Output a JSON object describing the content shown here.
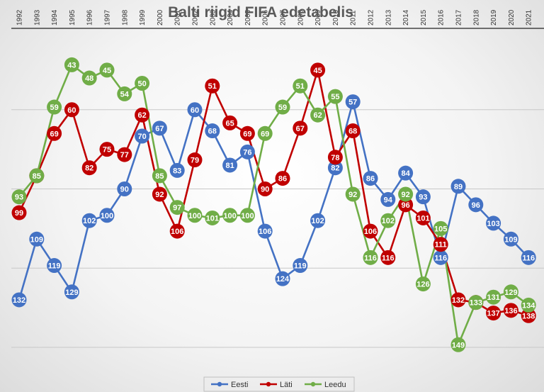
{
  "chart_data": {
    "type": "line",
    "title": "Balti riigid FIFA edetabelis",
    "x": [
      "1992",
      "1993",
      "1994",
      "1995",
      "1996",
      "1997",
      "1998",
      "1999",
      "2000",
      "2001",
      "2002",
      "2003",
      "2004",
      "2005",
      "2006",
      "2007",
      "2008",
      "2009",
      "2010",
      "2011",
      "2012",
      "2013",
      "2014",
      "2015",
      "2016",
      "2017",
      "2018",
      "2019",
      "2020",
      "2021"
    ],
    "y_reversed": true,
    "ylim": [
      150,
      30
    ],
    "grid": "horizontal",
    "x_axis_position": "top",
    "legend": "bottom-center",
    "series": [
      {
        "name": "Eesti",
        "color": "#4472c4",
        "values": [
          132,
          109,
          119,
          129,
          102,
          100,
          90,
          70,
          67,
          83,
          60,
          68,
          81,
          76,
          106,
          124,
          119,
          102,
          82,
          57,
          86,
          94,
          84,
          93,
          116,
          89,
          96,
          103,
          109,
          116
        ]
      },
      {
        "name": "Läti",
        "color": "#c00000",
        "values": [
          99,
          85,
          69,
          60,
          82,
          75,
          77,
          62,
          92,
          106,
          79,
          51,
          65,
          69,
          90,
          86,
          67,
          45,
          78,
          68,
          106,
          116,
          96,
          101,
          111,
          132,
          133,
          137,
          136,
          138
        ]
      },
      {
        "name": "Leedu",
        "color": "#70ad47",
        "values": [
          93,
          85,
          59,
          43,
          48,
          45,
          54,
          50,
          85,
          97,
          100,
          101,
          100,
          100,
          69,
          59,
          51,
          62,
          55,
          92,
          116,
          102,
          92,
          126,
          105,
          149,
          133,
          131,
          129,
          134
        ]
      }
    ]
  }
}
